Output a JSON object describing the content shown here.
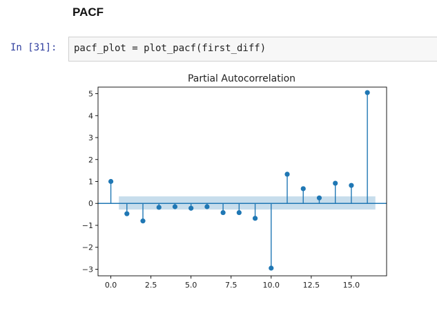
{
  "notebook": {
    "heading": "PACF",
    "cell": {
      "prompt": "In [31]:",
      "code": "pacf_plot = plot_pacf(first_diff)"
    }
  },
  "chart_data": {
    "type": "stem",
    "title": "Partial Autocorrelation",
    "xlabel": "",
    "ylabel": "",
    "xlim": [
      -0.8,
      17.2
    ],
    "ylim": [
      -3.3,
      5.3
    ],
    "xticks": [
      0.0,
      2.5,
      5.0,
      7.5,
      10.0,
      12.5,
      15.0
    ],
    "xtick_labels": [
      "0.0",
      "2.5",
      "5.0",
      "7.5",
      "10.0",
      "12.5",
      "15.0"
    ],
    "yticks": [
      -3,
      -2,
      -1,
      0,
      1,
      2,
      3,
      4,
      5
    ],
    "ytick_labels": [
      "−3",
      "−2",
      "−1",
      "0",
      "1",
      "2",
      "3",
      "4",
      "5"
    ],
    "x": [
      0,
      1,
      2,
      3,
      4,
      5,
      6,
      7,
      8,
      9,
      10,
      11,
      12,
      13,
      14,
      15,
      16
    ],
    "values": [
      1.0,
      -0.47,
      -0.8,
      -0.18,
      -0.15,
      -0.22,
      -0.15,
      -0.42,
      -0.42,
      -0.68,
      -2.95,
      1.33,
      0.67,
      0.25,
      0.92,
      0.82,
      5.05
    ],
    "confidence_band": {
      "x_from": 0.5,
      "x_to": 16.5,
      "lower": -0.28,
      "upper": 0.32
    },
    "colors": {
      "stem": "#1f77b4",
      "band": "#1f77b4",
      "zero_line": "#1f77b4"
    },
    "grid": false,
    "legend": "none"
  }
}
